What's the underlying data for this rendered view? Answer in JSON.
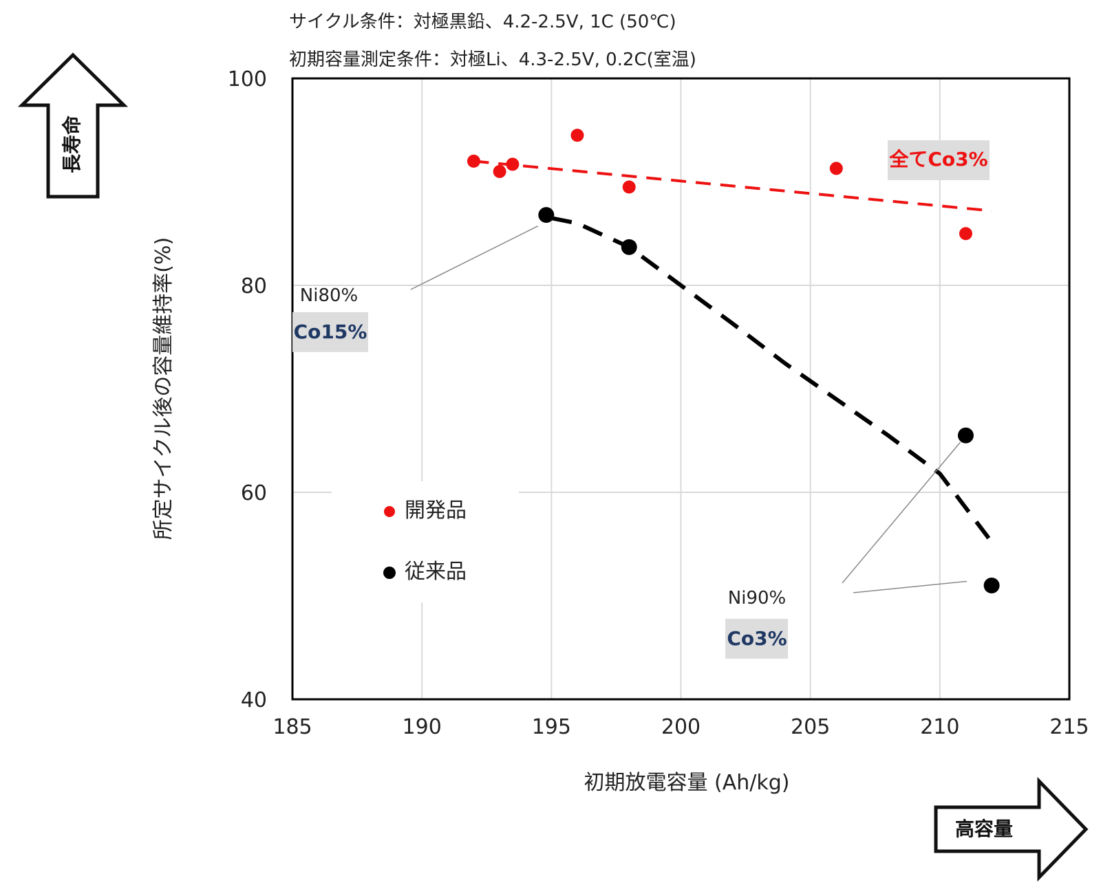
{
  "conditions": {
    "cycle": "サイクル条件：対極黒鉛、4.2-2.5V, 1C (50℃)",
    "initial": "初期容量測定条件：対極Li、4.3-2.5V, 0.2C(室温)"
  },
  "arrows": {
    "up_label": "長寿命",
    "right_label": "高容量"
  },
  "annotations": {
    "ni80": "Ni80%",
    "co15": "Co15%",
    "ni90": "Ni90%",
    "co3": "Co3%",
    "all_co3": "全てCo3%"
  },
  "colors": {
    "developed": "#ee1111",
    "conventional": "#000000",
    "label_navy": "#1f3864",
    "label_box": "#dddddd"
  },
  "chart_data": {
    "type": "scatter",
    "xlabel": "初期放電容量 (Ah/kg)",
    "ylabel": "所定サイクル後の容量維持率(%)",
    "xlim": [
      185,
      215
    ],
    "ylim": [
      40,
      100
    ],
    "xticks": [
      "185",
      "190",
      "195",
      "200",
      "205",
      "210",
      "215"
    ],
    "yticks": [
      "40",
      "60",
      "80",
      "100"
    ],
    "grid": true,
    "legend": "center-left",
    "series": [
      {
        "name": "開発品",
        "color": "#ee1111",
        "x": [
          192.0,
          193.0,
          193.5,
          196.0,
          198.0,
          206.0,
          211.0
        ],
        "y": [
          92.0,
          91.0,
          91.7,
          94.5,
          89.5,
          91.3,
          85.0
        ],
        "trend": {
          "style": "dashed",
          "x": [
            192.0,
            212.0
          ],
          "y": [
            92.0,
            87.2
          ]
        }
      },
      {
        "name": "従来品",
        "color": "#000000",
        "x": [
          194.8,
          198.0,
          211.0,
          212.0
        ],
        "y": [
          86.8,
          83.7,
          65.5,
          51.0
        ],
        "trend": {
          "style": "dashed",
          "x": [
            195.0,
            196.0,
            198.0,
            200.0,
            202.0,
            204.0,
            206.0,
            208.0,
            210.0,
            212.0
          ],
          "y": [
            86.5,
            86.0,
            83.7,
            80.0,
            76.3,
            72.5,
            69.0,
            65.5,
            61.8,
            55.2
          ]
        }
      }
    ]
  }
}
